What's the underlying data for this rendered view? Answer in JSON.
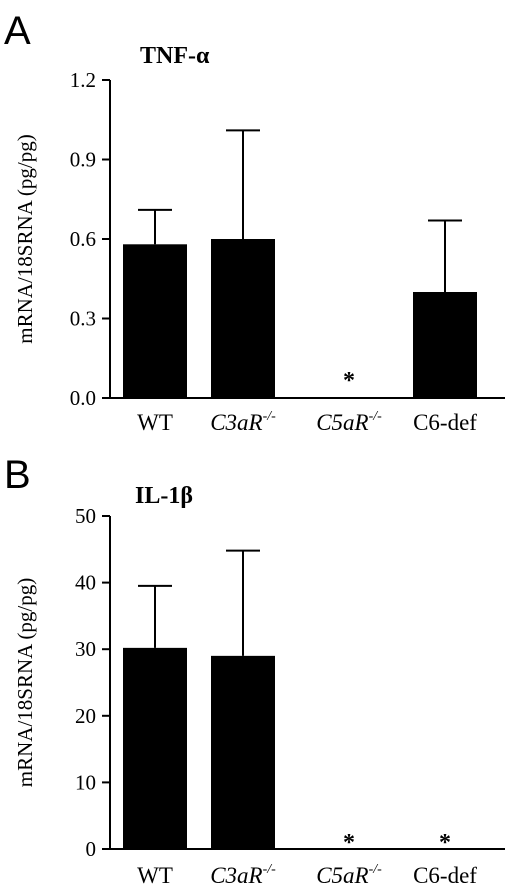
{
  "chart_data": [
    {
      "type": "bar",
      "panel": "A",
      "title": "TNF-α",
      "ylabel": "mRNA/18SRNA (pg/pg)",
      "categories": [
        {
          "base": "WT",
          "sup": ""
        },
        {
          "base": "C3aR",
          "sup": "-/-"
        },
        {
          "base": "C5aR",
          "sup": "-/-"
        },
        {
          "base": "C6-def",
          "sup": ""
        }
      ],
      "values": [
        0.58,
        0.6,
        0.0,
        0.4
      ],
      "errors": [
        0.13,
        0.41,
        0.0,
        0.27
      ],
      "significance": [
        "",
        "",
        "*",
        ""
      ],
      "ylim": [
        0,
        1.2
      ],
      "yticks": [
        "0.0",
        "0.3",
        "0.6",
        "0.9",
        "1.2"
      ],
      "bar_color": "#000000"
    },
    {
      "type": "bar",
      "panel": "B",
      "title": "IL-1β",
      "ylabel": "mRNA/18SRNA (pg/pg)",
      "categories": [
        {
          "base": "WT",
          "sup": ""
        },
        {
          "base": "C3aR",
          "sup": "-/-"
        },
        {
          "base": "C5aR",
          "sup": "-/-"
        },
        {
          "base": "C6-def",
          "sup": ""
        }
      ],
      "values": [
        30.2,
        29.0,
        0.0,
        0.0
      ],
      "errors": [
        9.3,
        15.8,
        0.0,
        0.0
      ],
      "significance": [
        "",
        "",
        "*",
        "*"
      ],
      "ylim": [
        0,
        50
      ],
      "yticks": [
        "0",
        "10",
        "20",
        "30",
        "40",
        "50"
      ],
      "bar_color": "#000000"
    }
  ]
}
